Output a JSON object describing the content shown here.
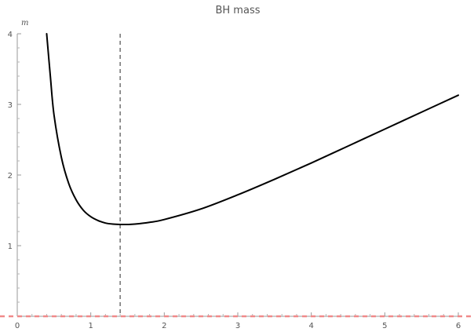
{
  "chart_data": {
    "type": "line",
    "title": "BH mass",
    "xlabel": "",
    "ylabel": "m",
    "xlim": [
      0,
      6
    ],
    "ylim": [
      0,
      4
    ],
    "x_ticks": [
      "0",
      "1",
      "2",
      "3",
      "4",
      "5",
      "6"
    ],
    "y_ticks": [
      "1",
      "2",
      "3",
      "4"
    ],
    "grid": false,
    "series": [
      {
        "color": "#000000",
        "x": [
          0.4,
          0.45,
          0.5,
          0.6,
          0.7,
          0.8,
          0.9,
          1.0,
          1.1,
          1.2,
          1.3,
          1.4,
          1.5,
          1.6,
          1.8,
          2.0,
          2.5,
          3.0,
          3.5,
          4.0,
          4.5,
          5.0,
          5.5,
          6.0
        ],
        "y": [
          4.0,
          3.4,
          2.85,
          2.25,
          1.88,
          1.65,
          1.5,
          1.41,
          1.355,
          1.32,
          1.305,
          1.3,
          1.3,
          1.305,
          1.33,
          1.37,
          1.52,
          1.72,
          1.94,
          2.17,
          2.41,
          2.65,
          2.89,
          3.13
        ]
      }
    ],
    "reference_lines": [
      {
        "orientation": "vertical",
        "value": 1.4,
        "style": "dashed",
        "color": "#7a7a7a"
      },
      {
        "orientation": "horizontal",
        "value": 0,
        "style": "dashed",
        "color": "#f08a8a"
      }
    ]
  }
}
